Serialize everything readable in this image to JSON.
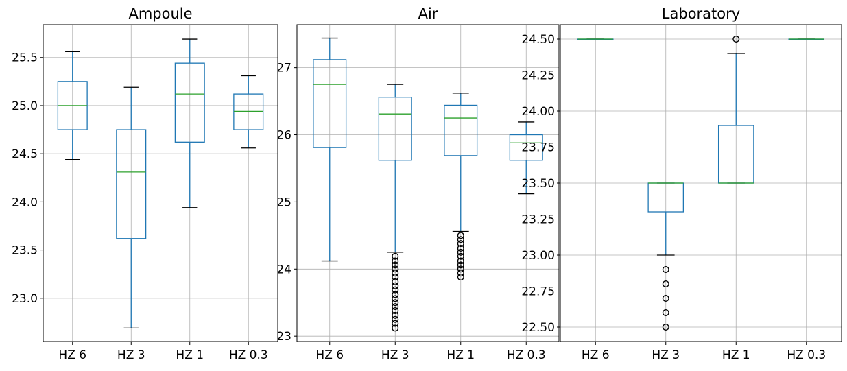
{
  "chart_data": [
    {
      "type": "box",
      "title": "Ampoule",
      "categories": [
        "HZ 6",
        "HZ 3",
        "HZ 1",
        "HZ 0.3"
      ],
      "ylim": [
        22.55,
        25.84
      ],
      "yticks": [
        23.0,
        23.5,
        24.0,
        24.5,
        25.0,
        25.5
      ],
      "ytick_labels": [
        "23.0",
        "23.5",
        "24.0",
        "24.5",
        "25.0",
        "25.5"
      ],
      "grid": true,
      "boxes": [
        {
          "category": "HZ 6",
          "whisker_low": 24.44,
          "q1": 24.75,
          "median": 25.0,
          "q3": 25.25,
          "whisker_high": 25.56,
          "outliers": []
        },
        {
          "category": "HZ 3",
          "whisker_low": 22.69,
          "q1": 23.62,
          "median": 24.31,
          "q3": 24.75,
          "whisker_high": 25.19,
          "outliers": []
        },
        {
          "category": "HZ 1",
          "whisker_low": 23.94,
          "q1": 24.62,
          "median": 25.12,
          "q3": 25.44,
          "whisker_high": 25.69,
          "outliers": []
        },
        {
          "category": "HZ 0.3",
          "whisker_low": 24.56,
          "q1": 24.75,
          "median": 24.94,
          "q3": 25.12,
          "whisker_high": 25.31,
          "outliers": []
        }
      ]
    },
    {
      "type": "box",
      "title": "Air",
      "categories": [
        "HZ 6",
        "HZ 3",
        "HZ 1",
        "HZ 0.3"
      ],
      "ylim": [
        22.92,
        27.64
      ],
      "yticks": [
        23,
        24,
        25,
        26,
        27
      ],
      "ytick_labels": [
        "23",
        "24",
        "25",
        "26",
        "27"
      ],
      "grid": true,
      "boxes": [
        {
          "category": "HZ 6",
          "whisker_low": 24.12,
          "q1": 25.81,
          "median": 26.75,
          "q3": 27.12,
          "whisker_high": 27.44,
          "outliers": []
        },
        {
          "category": "HZ 3",
          "whisker_low": 24.25,
          "q1": 25.62,
          "median": 26.31,
          "q3": 26.56,
          "whisker_high": 26.75,
          "outliers": [
            24.19,
            24.12,
            24.06,
            24.0,
            23.94,
            23.88,
            23.81,
            23.75,
            23.69,
            23.62,
            23.56,
            23.5,
            23.44,
            23.38,
            23.31,
            23.25,
            23.19,
            23.12
          ]
        },
        {
          "category": "HZ 1",
          "whisker_low": 24.56,
          "q1": 25.69,
          "median": 26.25,
          "q3": 26.44,
          "whisker_high": 26.62,
          "outliers": [
            24.5,
            24.44,
            24.38,
            24.31,
            24.25,
            24.19,
            24.12,
            24.06,
            24.0,
            23.94,
            23.88
          ]
        },
        {
          "category": "HZ 0.3",
          "whisker_low": 25.12,
          "q1": 25.62,
          "median": 25.88,
          "q3": 26.0,
          "whisker_high": 26.19,
          "outliers": []
        }
      ]
    },
    {
      "type": "box",
      "title": "Laboratory",
      "categories": [
        "HZ 6",
        "HZ 3",
        "HZ 1",
        "HZ 0.3"
      ],
      "ylim": [
        22.4,
        24.6
      ],
      "yticks": [
        22.5,
        22.75,
        23.0,
        23.25,
        23.5,
        23.75,
        24.0,
        24.25,
        24.5
      ],
      "ytick_labels": [
        "22.50",
        "22.75",
        "23.00",
        "23.25",
        "23.50",
        "23.75",
        "24.00",
        "24.25",
        "24.50"
      ],
      "grid": true,
      "boxes": [
        {
          "category": "HZ 6",
          "whisker_low": 24.5,
          "q1": 24.5,
          "median": 24.5,
          "q3": 24.5,
          "whisker_high": 24.5,
          "outliers": []
        },
        {
          "category": "HZ 3",
          "whisker_low": 23.0,
          "q1": 23.3,
          "median": 23.5,
          "q3": 23.5,
          "whisker_high": 23.5,
          "outliers": [
            22.9,
            22.8,
            22.7,
            22.6,
            22.5
          ]
        },
        {
          "category": "HZ 1",
          "whisker_low": 23.5,
          "q1": 23.5,
          "median": 23.5,
          "q3": 23.9,
          "whisker_high": 24.4,
          "outliers": [
            24.5
          ]
        },
        {
          "category": "HZ 0.3",
          "whisker_low": 24.5,
          "q1": 24.5,
          "median": 24.5,
          "q3": 24.5,
          "whisker_high": 24.5,
          "outliers": []
        }
      ]
    }
  ],
  "colors": {
    "box": "#1f77b4",
    "median": "#2ca02c",
    "outlier": "#000000",
    "grid": "#b0b0b0",
    "frame": "#000000"
  }
}
